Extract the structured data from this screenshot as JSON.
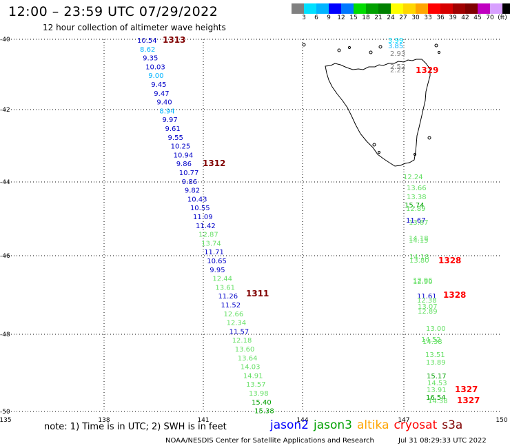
{
  "header": {
    "title": "12:00 – 23:59 UTC 07/29/2022",
    "subtitle": "12 hour collection of altimeter wave heights"
  },
  "legend": {
    "colors": [
      "#808080",
      "#00e0ff",
      "#00b4ff",
      "#0000ff",
      "#0078ff",
      "#00dc00",
      "#00a000",
      "#008000",
      "#ffff00",
      "#ffd700",
      "#ffa500",
      "#ff0000",
      "#d70000",
      "#a00000",
      "#800000",
      "#c000c0",
      "#d8a0ff",
      "#000000"
    ],
    "labels": [
      "3",
      "6",
      "9",
      "12",
      "15",
      "18",
      "21",
      "24",
      "27",
      "30",
      "33",
      "36",
      "39",
      "42",
      "45",
      "70",
      "(ft)"
    ]
  },
  "map": {
    "lat_labels": [
      "-40",
      "-42",
      "-44",
      "-46",
      "-48",
      "-50"
    ],
    "lon_labels": [
      "135",
      "138",
      "141",
      "144",
      "147",
      "150"
    ],
    "coastline": "Tasmania"
  },
  "tracks": {
    "west": [
      {
        "v": "10.54",
        "c": "#0000c8"
      },
      {
        "v": "8.62",
        "c": "#00b4ff"
      },
      {
        "v": "9.35",
        "c": "#0000c8"
      },
      {
        "v": "10.03",
        "c": "#0000c8"
      },
      {
        "v": "9.00",
        "c": "#00b4ff"
      },
      {
        "v": "9.45",
        "c": "#0000c8"
      },
      {
        "v": "9.47",
        "c": "#0000c8"
      },
      {
        "v": "9.40",
        "c": "#0000c8"
      },
      {
        "v": "8.94",
        "c": "#00b4ff"
      },
      {
        "v": "9.97",
        "c": "#0000c8"
      },
      {
        "v": "9.61",
        "c": "#0000c8"
      },
      {
        "v": "9.55",
        "c": "#0000c8"
      },
      {
        "v": "10.25",
        "c": "#0000c8"
      },
      {
        "v": "10.94",
        "c": "#0000c8"
      },
      {
        "v": "9.86",
        "c": "#0000c8"
      },
      {
        "v": "10.77",
        "c": "#0000c8"
      },
      {
        "v": "9.86",
        "c": "#0000c8"
      },
      {
        "v": "9.82",
        "c": "#0000c8"
      },
      {
        "v": "10.43",
        "c": "#0000c8"
      },
      {
        "v": "10.55",
        "c": "#0000c8"
      },
      {
        "v": "11.09",
        "c": "#0000c8"
      },
      {
        "v": "11.42",
        "c": "#0000c8"
      },
      {
        "v": "12.87",
        "c": "#66e066"
      },
      {
        "v": "13.74",
        "c": "#66e066"
      },
      {
        "v": "11.71",
        "c": "#0000c8"
      },
      {
        "v": "10.65",
        "c": "#0000c8"
      },
      {
        "v": "9.95",
        "c": "#0000c8"
      },
      {
        "v": "12.44",
        "c": "#66e066"
      },
      {
        "v": "13.61",
        "c": "#66e066"
      },
      {
        "v": "11.26",
        "c": "#0000c8"
      },
      {
        "v": "11.52",
        "c": "#0000c8"
      },
      {
        "v": "12.66",
        "c": "#66e066"
      },
      {
        "v": "12.34",
        "c": "#66e066"
      },
      {
        "v": "11.57",
        "c": "#0000c8"
      },
      {
        "v": "12.18",
        "c": "#66e066"
      },
      {
        "v": "13.60",
        "c": "#66e066"
      },
      {
        "v": "13.64",
        "c": "#66e066"
      },
      {
        "v": "14.03",
        "c": "#66e066"
      },
      {
        "v": "14.91",
        "c": "#66e066"
      },
      {
        "v": "13.57",
        "c": "#66e066"
      },
      {
        "v": "13.98",
        "c": "#66e066"
      },
      {
        "v": "15.40",
        "c": "#00a000"
      },
      {
        "v": "15.38",
        "c": "#00a000"
      }
    ],
    "west_passes": [
      {
        "label": "1313",
        "color": "#800000"
      },
      {
        "label": "1312",
        "color": "#800000"
      },
      {
        "label": "1311",
        "color": "#800000"
      }
    ],
    "east": [
      {
        "v": "3.99",
        "c": "#00e0ff"
      },
      {
        "v": "3.85",
        "c": "#00b4ff"
      },
      {
        "v": "2.93",
        "c": "#808080"
      },
      {
        "v": "2.52",
        "c": "#808080"
      },
      {
        "v": "2.27",
        "c": "#808080"
      },
      {
        "v": "12.24",
        "c": "#66e066"
      },
      {
        "v": "13.66",
        "c": "#66e066"
      },
      {
        "v": "13.38",
        "c": "#66e066"
      },
      {
        "v": "15.74",
        "c": "#00a000"
      },
      {
        "v": "12.89",
        "c": "#66e066"
      },
      {
        "v": "11.67",
        "c": "#0000c8"
      },
      {
        "v": "13.87",
        "c": "#66e066"
      },
      {
        "v": "14.18",
        "c": "#66e066"
      },
      {
        "v": "14.15",
        "c": "#66e066"
      },
      {
        "v": "14.18",
        "c": "#66e066"
      },
      {
        "v": "13.80",
        "c": "#66e066"
      },
      {
        "v": "12.96",
        "c": "#66e066"
      },
      {
        "v": "12.90",
        "c": "#66e066"
      },
      {
        "v": "11.61",
        "c": "#0000c8"
      },
      {
        "v": "12.38",
        "c": "#66e066"
      },
      {
        "v": "13.07",
        "c": "#66e066"
      },
      {
        "v": "12.89",
        "c": "#66e066"
      },
      {
        "v": "13.00",
        "c": "#66e066"
      },
      {
        "v": "14.52",
        "c": "#66e066"
      },
      {
        "v": "14.38",
        "c": "#66e066"
      },
      {
        "v": "13.51",
        "c": "#66e066"
      },
      {
        "v": "13.89",
        "c": "#66e066"
      },
      {
        "v": "15.17",
        "c": "#00a000"
      },
      {
        "v": "14.53",
        "c": "#66e066"
      },
      {
        "v": "13.91",
        "c": "#66e066"
      },
      {
        "v": "16.54",
        "c": "#00a000"
      },
      {
        "v": "14.38",
        "c": "#66e066"
      }
    ],
    "east_passes": [
      {
        "label": "1329",
        "color": "#ff0000"
      },
      {
        "label": "1328",
        "color": "#ff0000"
      },
      {
        "label": "1328",
        "color": "#ff0000"
      },
      {
        "label": "1327",
        "color": "#ff0000"
      },
      {
        "label": "1327",
        "color": "#ff0000"
      }
    ]
  },
  "footer": {
    "note": "note: 1) Time is in UTC; 2) SWH is in feet",
    "satellites": [
      {
        "name": "jason2",
        "color": "#0000ff"
      },
      {
        "name": "jason3",
        "color": "#00a000"
      },
      {
        "name": "altika",
        "color": "#ffa500"
      },
      {
        "name": "cryosat",
        "color": "#ff0000"
      },
      {
        "name": "s3a",
        "color": "#800000"
      }
    ],
    "credit": "NOAA/NESDIS Center for Satellite Applications and Research",
    "timestamp": "Jul 31 08:29:33 UTC 2022"
  }
}
